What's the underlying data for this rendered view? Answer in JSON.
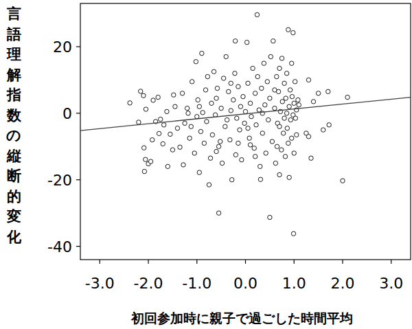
{
  "chart_data": {
    "type": "scatter",
    "x_label": "初回参加時に親子で過ごした時間平均",
    "y_label": "言語理解指数の縦断的変化",
    "xlim": [
      -3.4,
      3.4
    ],
    "ylim": [
      -44,
      33
    ],
    "xticks": [
      {
        "value": -3,
        "label": "-3.0"
      },
      {
        "value": -2,
        "label": "-2.0"
      },
      {
        "value": -1,
        "label": "-1.0"
      },
      {
        "value": 0,
        "label": "0.0"
      },
      {
        "value": 1,
        "label": "1.0"
      },
      {
        "value": 2,
        "label": "2.0"
      },
      {
        "value": 3,
        "label": "3.0"
      }
    ],
    "yticks": [
      -40,
      -20,
      0,
      20
    ],
    "grid": false,
    "series": [
      {
        "type": "scatter",
        "marker": "circle",
        "color": "#000000",
        "x": [
          -2.38,
          -2.16,
          -2.1,
          -2.05,
          -2.2,
          -2.09,
          -2.06,
          -2.0,
          -2.08,
          -1.95,
          -1.9,
          -1.85,
          -1.8,
          -1.75,
          -1.7,
          -1.68,
          -1.62,
          -1.6,
          -1.55,
          -1.5,
          -1.48,
          -1.45,
          -1.4,
          -1.92,
          -1.78,
          -1.35,
          -1.3,
          -1.28,
          -1.25,
          -1.2,
          -1.15,
          -1.1,
          -1.05,
          -1.0,
          -1.02,
          -0.98,
          -0.95,
          -0.9,
          -0.92,
          -0.88,
          -0.85,
          -0.82,
          -0.8,
          -0.78,
          -0.75,
          -0.72,
          -0.7,
          -0.68,
          -0.65,
          -0.62,
          -0.6,
          -0.58,
          -0.55,
          -0.52,
          -0.5,
          -0.55,
          -0.6,
          -1.12,
          -1.18,
          -0.95,
          -0.48,
          -0.45,
          -0.42,
          -0.4,
          -0.38,
          -0.35,
          -0.32,
          -0.3,
          -0.28,
          -0.25,
          -0.22,
          -0.21,
          -0.2,
          -0.18,
          -0.15,
          -0.12,
          -0.1,
          -0.08,
          -0.05,
          -0.02,
          0.0,
          0.03,
          0.05,
          0.08,
          0.1,
          0.12,
          0.15,
          0.18,
          0.2,
          0.22,
          0.24,
          0.25,
          0.28,
          0.3,
          0.31,
          0.33,
          0.35,
          0.38,
          0.4,
          0.42,
          0.45,
          0.47,
          0.5,
          0.5,
          0.1,
          -0.3,
          0.2,
          -0.15,
          0.35,
          0.05,
          0.52,
          0.55,
          0.57,
          0.6,
          0.62,
          0.64,
          0.66,
          0.68,
          0.7,
          0.7,
          0.72,
          0.74,
          0.75,
          0.76,
          0.78,
          0.8,
          0.8,
          0.82,
          0.83,
          0.85,
          0.86,
          0.88,
          0.88,
          0.9,
          0.9,
          0.92,
          0.93,
          0.95,
          0.96,
          0.98,
          0.98,
          0.99,
          1.0,
          1.0,
          1.02,
          1.03,
          1.05,
          1.05,
          1.08,
          1.1,
          0.6,
          0.65,
          0.85,
          0.95,
          0.7,
          1.25,
          1.3,
          1.35,
          1.4,
          1.5,
          1.6,
          1.7,
          1.72,
          2.0,
          2.1,
          1.3
        ],
        "values": [
          3.1,
          6.6,
          5.3,
          1.2,
          -2.7,
          -10.4,
          -13.9,
          -15.2,
          -17.5,
          -14.5,
          3.9,
          -2.5,
          4.8,
          -1.8,
          -9.2,
          -3.5,
          0.5,
          -16.0,
          -6.3,
          -11.0,
          5.5,
          2.0,
          -4.5,
          -8.0,
          -6.1,
          -10.2,
          6.0,
          -15.5,
          -3.0,
          1.5,
          -7.5,
          9.5,
          -12.0,
          -1.0,
          15.5,
          4.0,
          -17.8,
          18.0,
          -5.5,
          0.2,
          -9.0,
          7.0,
          -2.5,
          11.0,
          -21.5,
          -13.5,
          3.0,
          -6.5,
          12.5,
          -0.5,
          -11.5,
          7.5,
          -30.0,
          -8.5,
          1.5,
          -10.0,
          4.5,
          -4.0,
          0.0,
          2.0,
          -15.0,
          10.5,
          -4.0,
          17.0,
          -2.0,
          6.5,
          -8.0,
          0.8,
          -20.0,
          4.0,
          12.0,
          21.7,
          -12.5,
          -1.5,
          8.0,
          -5.0,
          2.0,
          -14.0,
          5.0,
          -3.0,
          0.5,
          21.3,
          9.0,
          -7.5,
          3.0,
          -1.0,
          13.5,
          -10.5,
          6.0,
          -3.5,
          29.6,
          11.0,
          1.0,
          -16.0,
          -19.9,
          7.5,
          -6.0,
          15.0,
          2.5,
          -12.0,
          9.5,
          -2.0,
          -31.3,
          4.5,
          -9.5,
          9.0,
          -13.0,
          -9.0,
          0.0,
          -4.5,
          17.0,
          -8.5,
          21.7,
          1.5,
          -15.0,
          11.0,
          -3.0,
          6.5,
          -18.5,
          13.5,
          0.5,
          -11.0,
          16.5,
          3.5,
          -6.0,
          9.0,
          -1.5,
          -13.0,
          4.5,
          12.0,
          -4.5,
          25.1,
          -9.0,
          -19.3,
          2.0,
          7.0,
          -2.0,
          -7.5,
          5.0,
          24.2,
          -0.5,
          -36.2,
          3.0,
          -12.0,
          9.5,
          -1.5,
          1.0,
          -6.5,
          4.0,
          2.5,
          7.0,
          -10.0,
          0.0,
          15.0,
          -4.0,
          -6.0,
          10.0,
          -13.5,
          3.5,
          6.0,
          -5.0,
          6.5,
          -3.5,
          -20.3,
          4.8,
          -7.0
        ]
      },
      {
        "type": "line",
        "line_style": "solid",
        "color": "#404040",
        "x": [
          -3.4,
          3.4
        ],
        "values": [
          -5.2,
          4.8
        ]
      }
    ]
  }
}
